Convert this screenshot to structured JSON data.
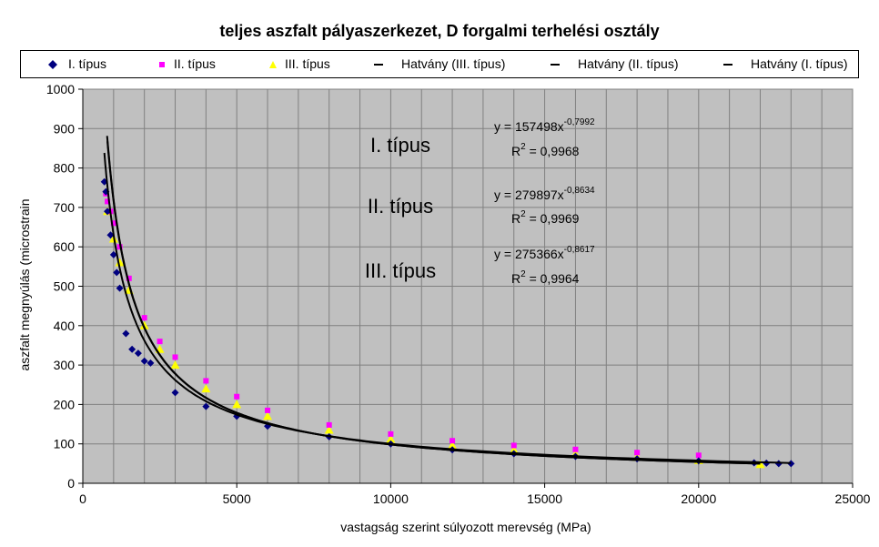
{
  "chart_data": {
    "type": "scatter",
    "title": "teljes aszfalt pályaszerkezet, D forgalmi terhelési osztály",
    "xlabel": "vastagság szerint súlyozott merevség (MPa)",
    "ylabel": "aszfalt megnyúlás (microstrain",
    "xlim": [
      0,
      25000
    ],
    "ylim": [
      0,
      1000
    ],
    "x_ticks": [
      "0",
      "5000",
      "10000",
      "15000",
      "20000",
      "25000"
    ],
    "y_ticks": [
      "0",
      "100",
      "200",
      "300",
      "400",
      "500",
      "600",
      "700",
      "800",
      "900",
      "1000"
    ],
    "grid": true,
    "legend_position": "top",
    "series": [
      {
        "name": "I. típus",
        "kind": "scatter",
        "marker": "diamond",
        "color": "#000080",
        "x": [
          700,
          750,
          800,
          900,
          1000,
          1100,
          1200,
          1400,
          1600,
          1800,
          2000,
          2200,
          3000,
          4000,
          5000,
          6000,
          8000,
          10000,
          12000,
          14000,
          16000,
          18000,
          20000,
          21800,
          22200,
          22600,
          23000
        ],
        "y": [
          765,
          740,
          690,
          630,
          580,
          535,
          495,
          380,
          340,
          330,
          310,
          305,
          230,
          195,
          170,
          145,
          118,
          100,
          85,
          75,
          68,
          62,
          57,
          52,
          51,
          50,
          50
        ]
      },
      {
        "name": "II. típus",
        "kind": "scatter",
        "marker": "square",
        "color": "#ff00ff",
        "x": [
          750,
          800,
          900,
          1000,
          1200,
          1500,
          2000,
          2500,
          3000,
          4000,
          5000,
          6000,
          8000,
          10000,
          12000,
          14000,
          16000,
          18000,
          20000
        ],
        "y": [
          735,
          715,
          690,
          660,
          600,
          520,
          420,
          360,
          320,
          260,
          220,
          185,
          148,
          125,
          108,
          96,
          86,
          78,
          71
        ]
      },
      {
        "name": "III. típus",
        "kind": "scatter",
        "marker": "triangle",
        "color": "#ffff00",
        "x": [
          800,
          1000,
          1200,
          1500,
          2000,
          2500,
          3000,
          4000,
          5000,
          6000,
          8000,
          10000,
          12000,
          14000,
          16000,
          18000,
          20000,
          22000
        ],
        "y": [
          690,
          620,
          560,
          490,
          400,
          340,
          300,
          240,
          200,
          170,
          135,
          112,
          96,
          84,
          74,
          66,
          58,
          48
        ]
      },
      {
        "name": "Hatvány (III. típus)",
        "kind": "power",
        "a": 275366,
        "b": -0.8617,
        "xrange": [
          800,
          22000
        ],
        "color": "#000000"
      },
      {
        "name": "Hatvány (II. típus)",
        "kind": "power",
        "a": 279897,
        "b": -0.8634,
        "xrange": [
          790,
          22000
        ],
        "color": "#000000"
      },
      {
        "name": "Hatvány (I. típus)",
        "kind": "power",
        "a": 157498,
        "b": -0.7992,
        "xrange": [
          700,
          23000
        ],
        "color": "#000000"
      }
    ],
    "annotations": {
      "labels": [
        "I. típus",
        "II. típus",
        "III. típus"
      ],
      "equations": [
        {
          "eq": "y = 157498x",
          "exp": "-0,7992",
          "r2_prefix": "R",
          "r2_value": " = 0,9968"
        },
        {
          "eq": "y = 279897x",
          "exp": "-0,8634",
          "r2_prefix": "R",
          "r2_value": " = 0,9969"
        },
        {
          "eq": "y = 275366x",
          "exp": "-0,8617",
          "r2_prefix": "R",
          "r2_value": " = 0,9964"
        }
      ]
    },
    "colors": {
      "plot_bg": "#c0c0c0",
      "grid": "#808080"
    }
  }
}
